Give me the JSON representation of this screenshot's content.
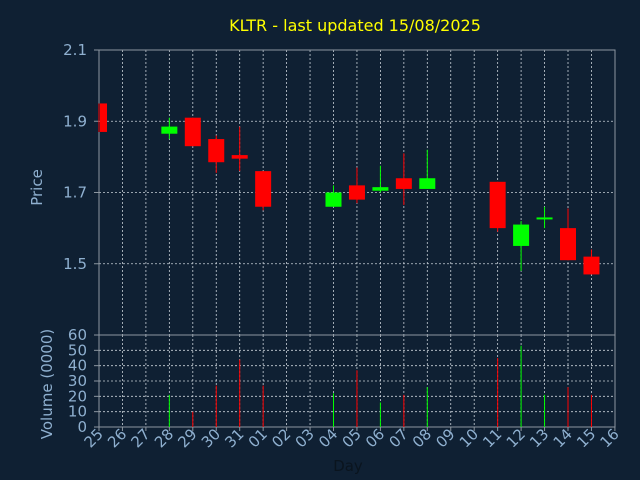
{
  "colors": {
    "background": "#0f2033",
    "axis": "#8c96a0",
    "grid": "#c8d0d8",
    "text": "#8fb0d0",
    "title": "#ffff00",
    "up": "#00ff00",
    "down": "#ff0000"
  },
  "chart_data": {
    "type": "candlestick",
    "title": "KLTR - last updated 15/08/2025",
    "xlabel": "Day",
    "ylabel_price": "Price",
    "ylabel_volume": "Volume (0000)",
    "price_ylim": [
      1.3,
      2.1
    ],
    "price_ticks": [
      "2.1",
      "1.9",
      "1.7",
      "1.5"
    ],
    "volume_ylim": [
      0,
      60
    ],
    "volume_ticks": [
      "60",
      "50",
      "40",
      "30",
      "20",
      "10",
      "0"
    ],
    "grid": true,
    "x_tick_labels": [
      "25",
      "26",
      "27",
      "28",
      "29",
      "30",
      "31",
      "01",
      "02",
      "03",
      "04",
      "05",
      "06",
      "07",
      "08",
      "09",
      "10",
      "11",
      "12",
      "13",
      "14",
      "15",
      "16"
    ],
    "candles": [
      {
        "day": "25",
        "open": 1.95,
        "high": 1.95,
        "low": 1.87,
        "close": 1.87,
        "volume": null
      },
      {
        "day": "28",
        "open": 1.865,
        "high": 1.91,
        "low": 1.85,
        "close": 1.885,
        "volume": 21
      },
      {
        "day": "29",
        "open": 1.91,
        "high": 1.91,
        "low": 1.83,
        "close": 1.83,
        "volume": 10
      },
      {
        "day": "30",
        "open": 1.85,
        "high": 1.86,
        "low": 1.755,
        "close": 1.785,
        "volume": 27
      },
      {
        "day": "31",
        "open": 1.805,
        "high": 1.885,
        "low": 1.76,
        "close": 1.795,
        "volume": 44
      },
      {
        "day": "01",
        "open": 1.76,
        "high": 1.76,
        "low": 1.65,
        "close": 1.66,
        "volume": 27
      },
      {
        "day": "04",
        "open": 1.66,
        "high": 1.72,
        "low": 1.66,
        "close": 1.7,
        "volume": 22
      },
      {
        "day": "05",
        "open": 1.72,
        "high": 1.77,
        "low": 1.67,
        "close": 1.68,
        "volume": 37
      },
      {
        "day": "06",
        "open": 1.705,
        "high": 1.775,
        "low": 1.7,
        "close": 1.715,
        "volume": 16
      },
      {
        "day": "07",
        "open": 1.74,
        "high": 1.81,
        "low": 1.665,
        "close": 1.71,
        "volume": 21
      },
      {
        "day": "08",
        "open": 1.71,
        "high": 1.82,
        "low": 1.71,
        "close": 1.74,
        "volume": 26
      },
      {
        "day": "11",
        "open": 1.73,
        "high": 1.73,
        "low": 1.59,
        "close": 1.6,
        "volume": 45
      },
      {
        "day": "12",
        "open": 1.55,
        "high": 1.62,
        "low": 1.48,
        "close": 1.61,
        "volume": 53
      },
      {
        "day": "13",
        "open": 1.625,
        "high": 1.66,
        "low": 1.6,
        "close": 1.63,
        "volume": 21
      },
      {
        "day": "14",
        "open": 1.6,
        "high": 1.655,
        "low": 1.51,
        "close": 1.51,
        "volume": 26
      },
      {
        "day": "15",
        "open": 1.52,
        "high": 1.54,
        "low": 1.47,
        "close": 1.47,
        "volume": 21
      }
    ]
  }
}
